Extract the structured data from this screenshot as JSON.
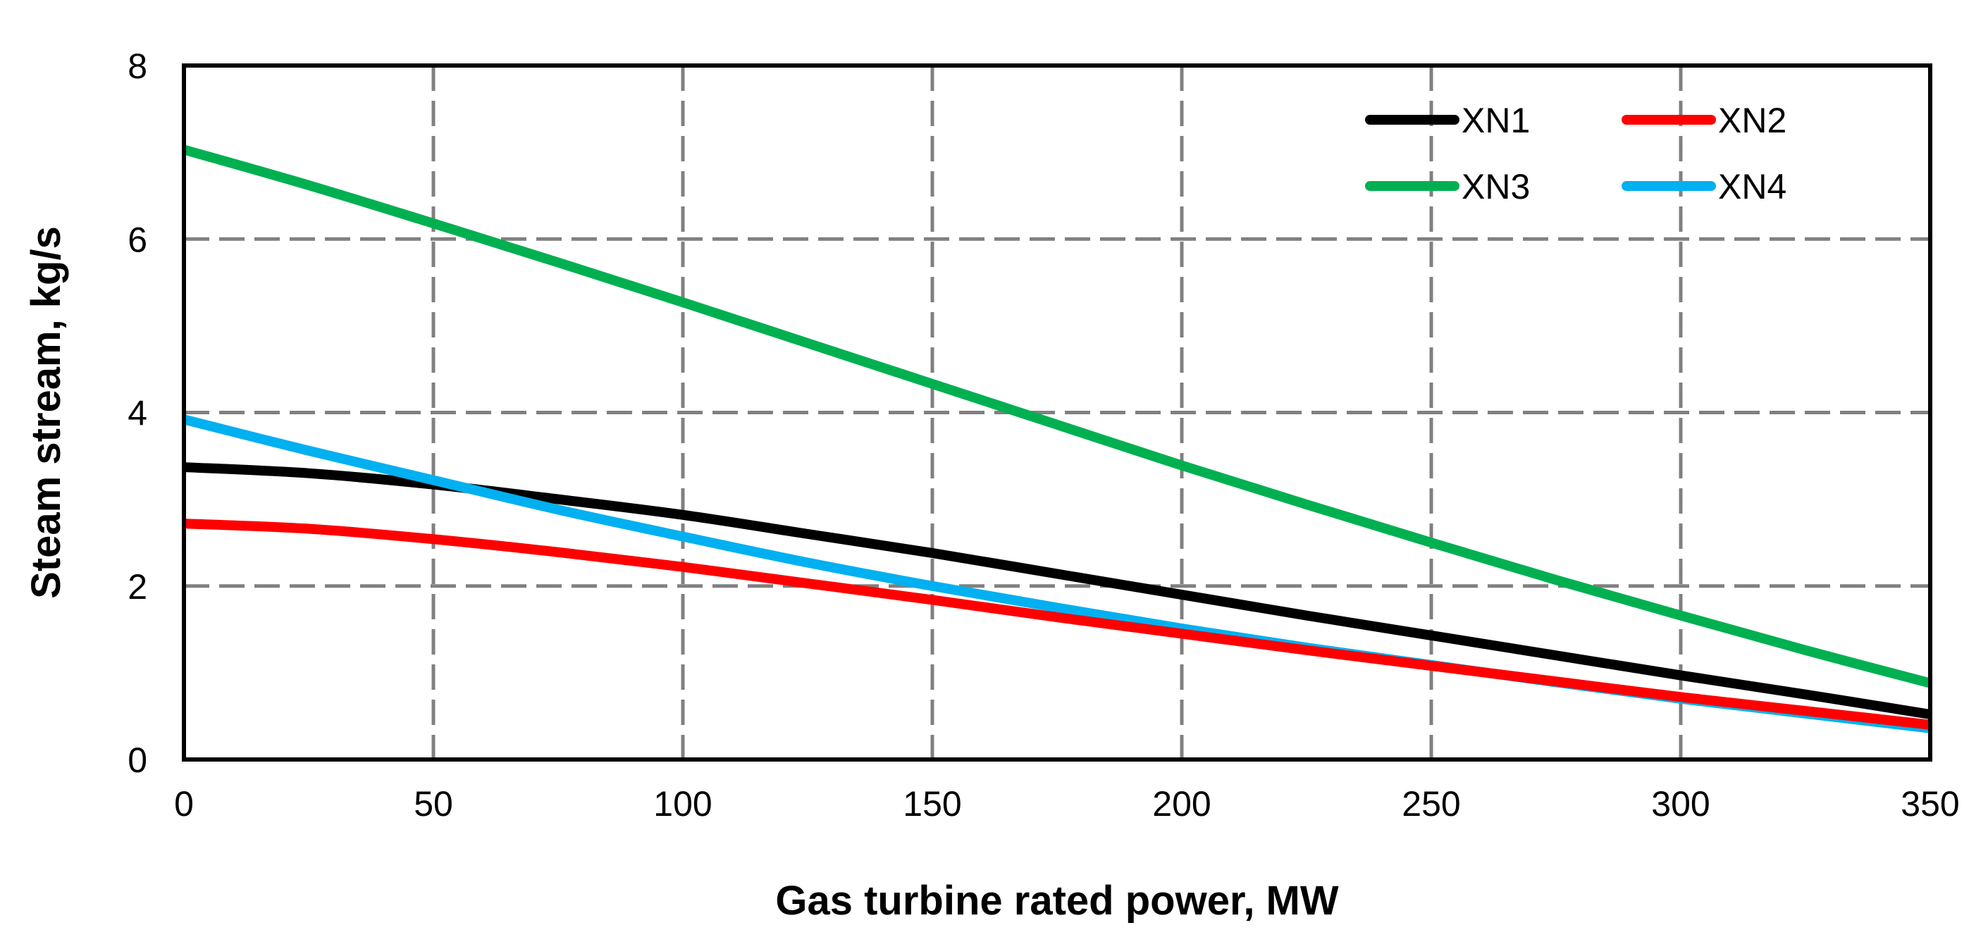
{
  "chart_data": {
    "type": "line",
    "title": "",
    "xlabel": "Gas turbine rated power, MW",
    "ylabel": "Steam stream, kg/s",
    "xlim": [
      0,
      350
    ],
    "ylim": [
      0,
      8
    ],
    "xticks": [
      0,
      50,
      100,
      150,
      200,
      250,
      300,
      350
    ],
    "yticks": [
      0,
      2,
      4,
      6,
      8
    ],
    "grid": true,
    "legend_position": "top-right",
    "series": [
      {
        "name": "XN1",
        "color": "#000000",
        "x": [
          0,
          25,
          50,
          75,
          100,
          125,
          150,
          175,
          200,
          225,
          250,
          275,
          300,
          325,
          350
        ],
        "y": [
          3.37,
          3.3,
          3.17,
          3.0,
          2.82,
          2.6,
          2.38,
          2.14,
          1.9,
          1.66,
          1.43,
          1.2,
          0.97,
          0.75,
          0.52
        ]
      },
      {
        "name": "XN2",
        "color": "#ff0000",
        "x": [
          0,
          25,
          50,
          75,
          100,
          125,
          150,
          175,
          200,
          225,
          250,
          275,
          300,
          325,
          350
        ],
        "y": [
          2.72,
          2.66,
          2.54,
          2.39,
          2.22,
          2.03,
          1.84,
          1.64,
          1.45,
          1.26,
          1.08,
          0.9,
          0.72,
          0.56,
          0.4
        ]
      },
      {
        "name": "XN3",
        "color": "#00b050",
        "x": [
          0,
          25,
          50,
          75,
          100,
          125,
          150,
          175,
          200,
          225,
          250,
          275,
          300,
          325,
          350
        ],
        "y": [
          7.03,
          6.62,
          6.18,
          5.73,
          5.27,
          4.8,
          4.33,
          3.86,
          3.39,
          2.94,
          2.5,
          2.07,
          1.66,
          1.26,
          0.88
        ]
      },
      {
        "name": "XN4",
        "color": "#00b0f0",
        "x": [
          0,
          25,
          50,
          75,
          100,
          125,
          150,
          175,
          200,
          225,
          250,
          275,
          300,
          325,
          350
        ],
        "y": [
          3.92,
          3.56,
          3.22,
          2.88,
          2.57,
          2.27,
          2.0,
          1.75,
          1.51,
          1.29,
          1.09,
          0.89,
          0.7,
          0.53,
          0.36
        ]
      }
    ]
  }
}
